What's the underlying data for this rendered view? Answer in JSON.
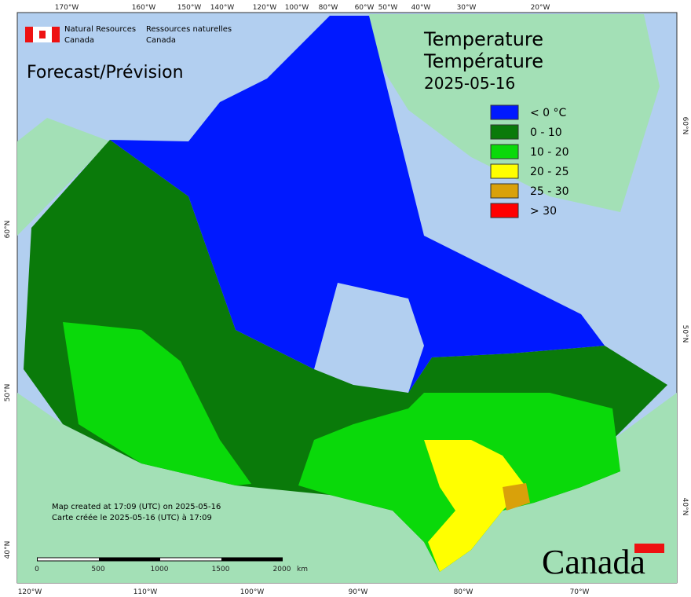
{
  "header": {
    "department_en": [
      "Natural Resources",
      "Canada"
    ],
    "department_fr": [
      "Ressources naturelles",
      "Canada"
    ]
  },
  "title": {
    "product": "Forecast/Prévision",
    "variable_en": "Temperature",
    "variable_fr": "Température",
    "date": "2025-05-16"
  },
  "legend": [
    {
      "label": "< 0 °C",
      "color": "#0019ff"
    },
    {
      "label": "0 - 10",
      "color": "#0a7a0a"
    },
    {
      "label": "10 - 20",
      "color": "#0ad90a"
    },
    {
      "label": "20 - 25",
      "color": "#ffff00"
    },
    {
      "label": "25 - 30",
      "color": "#d9a10a"
    },
    {
      "label": "> 30",
      "color": "#ff0000"
    }
  ],
  "graticule": {
    "top": [
      "170°W",
      "160°W",
      "150°W",
      "140°W",
      "120°W",
      "100°W",
      "80°W",
      "60°W",
      "50°W",
      "40°W",
      "30°W",
      "20°W"
    ],
    "bottom": [
      "120°W",
      "110°W",
      "100°W",
      "90°W",
      "80°W",
      "70°W"
    ],
    "left": [
      "60°N",
      "50°N",
      "40°N"
    ],
    "right": [
      "60°N",
      "50°N",
      "40°N"
    ]
  },
  "credits": [
    "Map created at 17:09 (UTC) on 2025-05-16",
    "Carte créée le 2025-05-16 (UTC) à 17:09"
  ],
  "scale_bar": {
    "labels": [
      "0",
      "500",
      "1000",
      "1500",
      "2000"
    ],
    "unit": "km"
  },
  "wordmark": "Canada"
}
